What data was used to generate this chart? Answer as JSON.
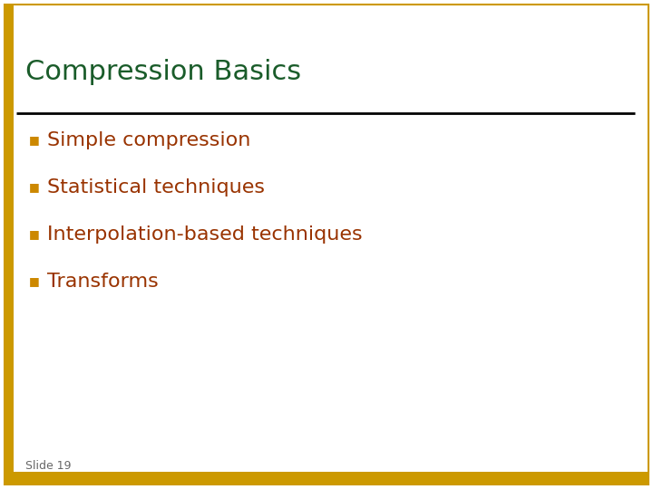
{
  "title": "Compression Basics",
  "title_color": "#1a5c2a",
  "title_fontsize": 22,
  "bullet_items": [
    "Simple compression",
    "Statistical techniques",
    "Interpolation-based techniques",
    "Transforms"
  ],
  "bullet_color": "#993300",
  "bullet_fontsize": 16,
  "bullet_marker_color": "#cc8800",
  "slide_label": "Slide 19",
  "slide_label_color": "#666666",
  "slide_label_fontsize": 9,
  "background_color": "#ffffff",
  "border_color": "#cc9900",
  "divider_color": "#000000",
  "left_bar_color": "#cc9900"
}
